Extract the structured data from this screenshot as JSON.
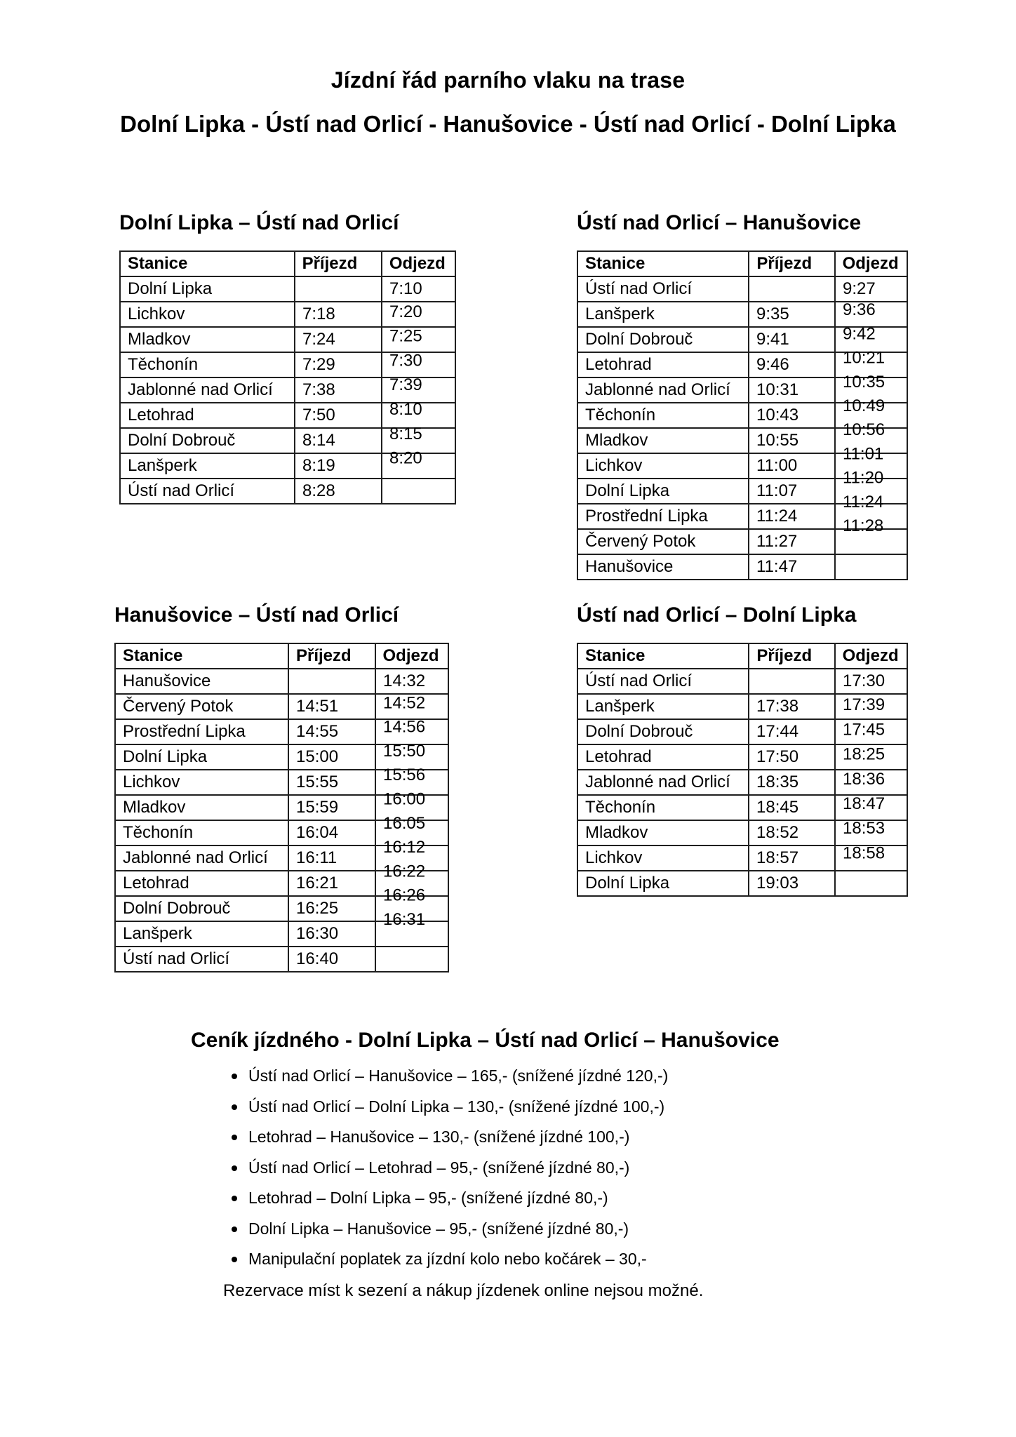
{
  "document": {
    "title": "Jízdní řád parního vlaku na trase",
    "subtitle": "Dolní Lipka - Ústí nad Orlicí - Hanušovice - Ústí nad Orlicí - Dolní Lipka"
  },
  "tables": [
    {
      "heading": "Dolní Lipka – Ústí nad Orlicí",
      "columns": [
        "Stanice",
        "Příjezd",
        "Odjezd"
      ],
      "rows": [
        [
          "Dolní Lipka",
          "",
          "7:10"
        ],
        [
          "Lichkov",
          "7:18",
          "7:20"
        ],
        [
          "Mladkov",
          "7:24",
          "7:25"
        ],
        [
          "Těchonín",
          "7:29",
          "7:30"
        ],
        [
          "Jablonné nad Orlicí",
          "7:38",
          "7:39"
        ],
        [
          "Letohrad",
          "7:50",
          "8:10"
        ],
        [
          "Dolní Dobrouč",
          "8:14",
          "8:15"
        ],
        [
          "Lanšperk",
          "8:19",
          "8:20"
        ],
        [
          "Ústí nad Orlicí",
          "8:28",
          ""
        ]
      ]
    },
    {
      "heading": "Ústí nad Orlicí – Hanušovice",
      "columns": [
        "Stanice",
        "Příjezd",
        "Odjezd"
      ],
      "rows": [
        [
          "Ústí nad Orlicí",
          "",
          "9:27"
        ],
        [
          "Lanšperk",
          "9:35",
          "9:36"
        ],
        [
          "Dolní Dobrouč",
          "9:41",
          "9:42"
        ],
        [
          "Letohrad",
          "9:46",
          "10:21"
        ],
        [
          "Jablonné nad Orlicí",
          "10:31",
          "10:35"
        ],
        [
          "Těchonín",
          "10:43",
          "10:49"
        ],
        [
          "Mladkov",
          "10:55",
          "10:56"
        ],
        [
          "Lichkov",
          "11:00",
          "11:01"
        ],
        [
          "Dolní Lipka",
          "11:07",
          "11:20"
        ],
        [
          "Prostřední Lipka",
          "11:24",
          "11:24"
        ],
        [
          "Červený Potok",
          "11:27",
          "11:28"
        ],
        [
          "Hanušovice",
          "11:47",
          ""
        ]
      ]
    },
    {
      "heading": "Hanušovice – Ústí nad Orlicí",
      "columns": [
        "Stanice",
        "Příjezd",
        "Odjezd"
      ],
      "rows": [
        [
          "Hanušovice",
          "",
          "14:32"
        ],
        [
          "Červený Potok",
          "14:51",
          "14:52"
        ],
        [
          "Prostřední Lipka",
          "14:55",
          "14:56"
        ],
        [
          "Dolní Lipka",
          "15:00",
          "15:50"
        ],
        [
          "Lichkov",
          "15:55",
          "15:56"
        ],
        [
          "Mladkov",
          "15:59",
          "16:00"
        ],
        [
          "Těchonín",
          "16:04",
          "16:05"
        ],
        [
          "Jablonné nad Orlicí",
          "16:11",
          "16:12"
        ],
        [
          "Letohrad",
          "16:21",
          "16:22"
        ],
        [
          "Dolní Dobrouč",
          "16:25",
          "16:26"
        ],
        [
          "Lanšperk",
          "16:30",
          "16:31"
        ],
        [
          "Ústí nad Orlicí",
          "16:40",
          ""
        ]
      ]
    },
    {
      "heading": "Ústí nad Orlicí – Dolní Lipka",
      "columns": [
        "Stanice",
        "Příjezd",
        "Odjezd"
      ],
      "rows": [
        [
          "Ústí nad Orlicí",
          "",
          "17:30"
        ],
        [
          "Lanšperk",
          "17:38",
          "17:39"
        ],
        [
          "Dolní Dobrouč",
          "17:44",
          "17:45"
        ],
        [
          "Letohrad",
          "17:50",
          "18:25"
        ],
        [
          "Jablonné nad Orlicí",
          "18:35",
          "18:36"
        ],
        [
          "Těchonín",
          "18:45",
          "18:47"
        ],
        [
          "Mladkov",
          "18:52",
          "18:53"
        ],
        [
          "Lichkov",
          "18:57",
          "18:58"
        ],
        [
          "Dolní Lipka",
          "19:03",
          ""
        ]
      ]
    }
  ],
  "pricing": {
    "heading": "Ceník jízdného - Dolní Lipka – Ústí nad Orlicí – Hanušovice",
    "items": [
      "Ústí nad Orlicí – Hanušovice – 165,- (snížené jízdné 120,-)",
      "Ústí nad Orlicí – Dolní Lipka – 130,- (snížené jízdné 100,-)",
      "Letohrad – Hanušovice – 130,- (snížené jízdné 100,-)",
      "Ústí nad Orlicí – Letohrad – 95,- (snížené jízdné 80,-)",
      "Letohrad – Dolní Lipka – 95,- (snížené jízdné 80,-)",
      "Dolní Lipka – Hanušovice – 95,- (snížené jízdné 80,-)",
      "Manipulační poplatek za jízdní kolo nebo kočárek – 30,-"
    ],
    "note": "Rezervace míst k sezení a nákup jízdenek online nejsou možné."
  }
}
